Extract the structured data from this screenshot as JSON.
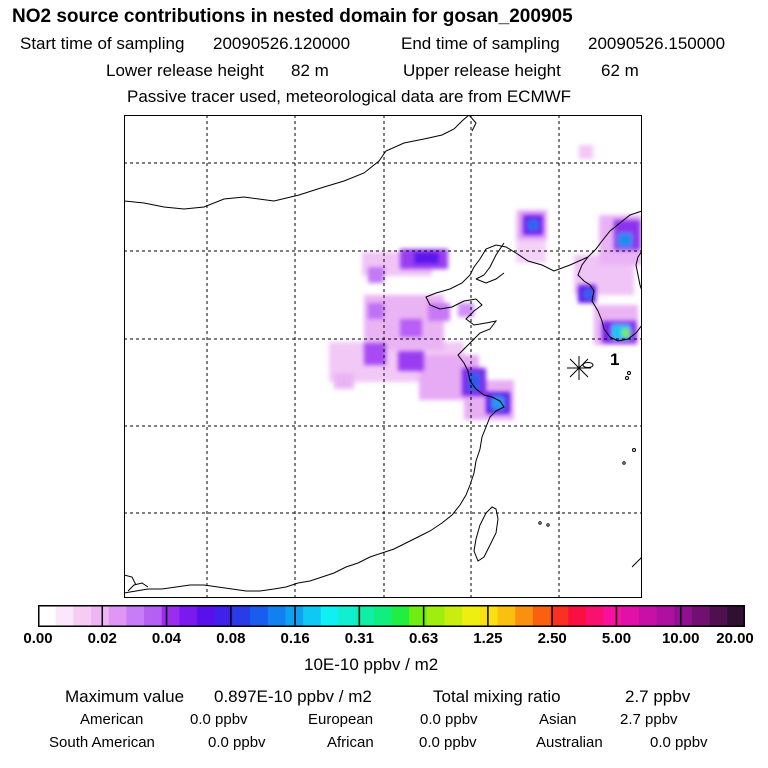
{
  "header": {
    "title": "NO2 source contributions in nested domain for gosan_200905",
    "start_label": "Start time of sampling",
    "start_value": "20090526.120000",
    "end_label": "End time of sampling",
    "end_value": "20090526.150000",
    "lower_label": "Lower release height",
    "lower_value": "82 m",
    "upper_label": "Upper release height",
    "upper_value": "62 m",
    "note": "Passive tracer used, meteorological data are from ECMWF"
  },
  "map": {
    "receptor_label": "1"
  },
  "colorbar": {
    "ticks": [
      "0.00",
      "0.02",
      "0.04",
      "0.08",
      "0.16",
      "0.31",
      "0.63",
      "1.25",
      "2.50",
      "5.00",
      "10.00",
      "20.00"
    ],
    "units": "10E-10 ppbv / m2",
    "colors": [
      "#ffffff",
      "#fbe6fb",
      "#f4ccf4",
      "#eeb5f5",
      "#e196f6",
      "#c97cf8",
      "#b55ff5",
      "#9a2df0",
      "#7a1aee",
      "#5a10ec",
      "#4020ea",
      "#2a3ce8",
      "#1a5cee",
      "#1280f0",
      "#10a0f2",
      "#10c8f4",
      "#10f0f2",
      "#10f0d0",
      "#10eea8",
      "#10ee80",
      "#20ee40",
      "#70ee10",
      "#a0ee10",
      "#c8ee10",
      "#eeee10",
      "#fae010",
      "#fac010",
      "#fa9010",
      "#fa6010",
      "#fa3020",
      "#fa1040",
      "#fa1070",
      "#f810a0",
      "#e010a8",
      "#c810a8",
      "#b010a0",
      "#901090",
      "#701070",
      "#501050",
      "#301030"
    ]
  },
  "stats": {
    "max_label": "Maximum value",
    "max_value": "0.897E-10 ppbv / m2",
    "total_label": "Total mixing ratio",
    "total_value": "2.7 ppbv",
    "regions": [
      {
        "name": "American",
        "value": "0.0 ppbv"
      },
      {
        "name": "European",
        "value": "0.0 ppbv"
      },
      {
        "name": "Asian",
        "value": "2.7 ppbv"
      },
      {
        "name": "South American",
        "value": "0.0 ppbv"
      },
      {
        "name": "African",
        "value": "0.0 ppbv"
      },
      {
        "name": "Australian",
        "value": "0.0 ppbv"
      }
    ]
  }
}
